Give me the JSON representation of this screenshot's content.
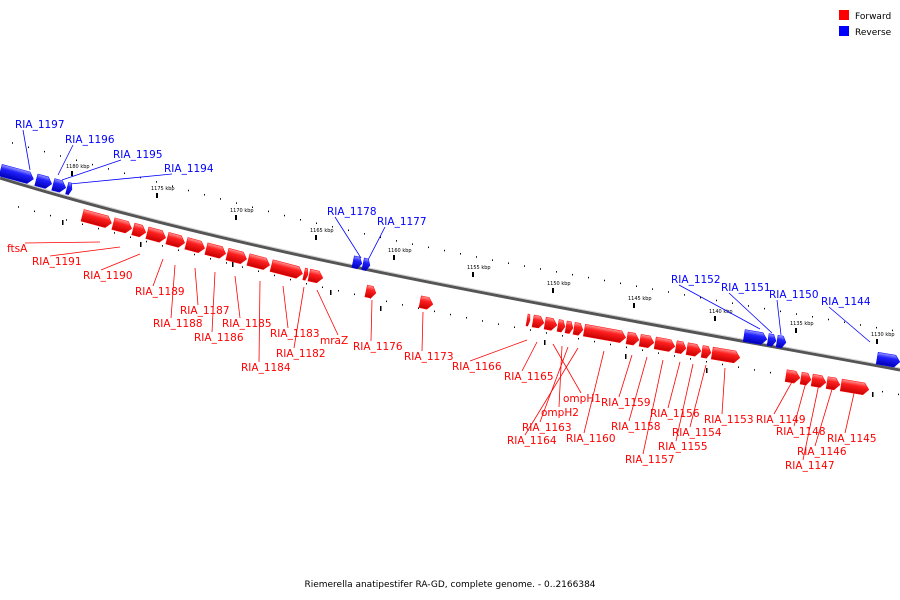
{
  "legend": [
    {
      "label": "Forward",
      "color": "#ff0000"
    },
    {
      "label": "Reverse",
      "color": "#0000ff"
    }
  ],
  "colors": {
    "forward": "#ff0000",
    "reverse": "#0000ff",
    "backbone": "#808080"
  },
  "caption": "Riemerella anatipestifer RA-GD, complete genome. - 0..2166384",
  "ticks": [
    "1180 kbp",
    "1175 kbp",
    "1170 kbp",
    "1165 kbp",
    "1160 kbp",
    "1155 kbp",
    "1150 kbp",
    "1145 kbp",
    "1140 kbp",
    "1135 kbp",
    "1130 kbp"
  ],
  "genes": [
    {
      "name": "RIA_1197",
      "strand": "reverse"
    },
    {
      "name": "RIA_1196",
      "strand": "reverse"
    },
    {
      "name": "RIA_1195",
      "strand": "reverse"
    },
    {
      "name": "RIA_1194",
      "strand": "reverse"
    },
    {
      "name": "ftsA",
      "strand": "forward"
    },
    {
      "name": "RIA_1191",
      "strand": "forward"
    },
    {
      "name": "RIA_1190",
      "strand": "forward"
    },
    {
      "name": "RIA_1189",
      "strand": "forward"
    },
    {
      "name": "RIA_1188",
      "strand": "forward"
    },
    {
      "name": "RIA_1187",
      "strand": "forward"
    },
    {
      "name": "RIA_1186",
      "strand": "forward"
    },
    {
      "name": "RIA_1185",
      "strand": "forward"
    },
    {
      "name": "RIA_1184",
      "strand": "forward"
    },
    {
      "name": "RIA_1183",
      "strand": "forward"
    },
    {
      "name": "RIA_1182",
      "strand": "forward"
    },
    {
      "name": "mraZ",
      "strand": "forward"
    },
    {
      "name": "RIA_1178",
      "strand": "reverse"
    },
    {
      "name": "RIA_1177",
      "strand": "reverse"
    },
    {
      "name": "RIA_1176",
      "strand": "forward"
    },
    {
      "name": "RIA_1173",
      "strand": "forward"
    },
    {
      "name": "RIA_1166",
      "strand": "forward"
    },
    {
      "name": "RIA_1165",
      "strand": "forward"
    },
    {
      "name": "ompH1",
      "strand": "forward"
    },
    {
      "name": "ompH2",
      "strand": "forward"
    },
    {
      "name": "RIA_1163",
      "strand": "forward"
    },
    {
      "name": "RIA_1164",
      "strand": "forward"
    },
    {
      "name": "RIA_1160",
      "strand": "forward"
    },
    {
      "name": "RIA_1159",
      "strand": "forward"
    },
    {
      "name": "RIA_1158",
      "strand": "forward"
    },
    {
      "name": "RIA_1157",
      "strand": "forward"
    },
    {
      "name": "RIA_1156",
      "strand": "forward"
    },
    {
      "name": "RIA_1155",
      "strand": "forward"
    },
    {
      "name": "RIA_1154",
      "strand": "forward"
    },
    {
      "name": "RIA_1153",
      "strand": "forward"
    },
    {
      "name": "RIA_1152",
      "strand": "reverse"
    },
    {
      "name": "RIA_1151",
      "strand": "reverse"
    },
    {
      "name": "RIA_1150",
      "strand": "reverse"
    },
    {
      "name": "RIA_1144",
      "strand": "reverse"
    },
    {
      "name": "RIA_1149",
      "strand": "forward"
    },
    {
      "name": "RIA_1148",
      "strand": "forward"
    },
    {
      "name": "RIA_1147",
      "strand": "forward"
    },
    {
      "name": "RIA_1146",
      "strand": "forward"
    },
    {
      "name": "RIA_1145",
      "strand": "forward"
    }
  ]
}
